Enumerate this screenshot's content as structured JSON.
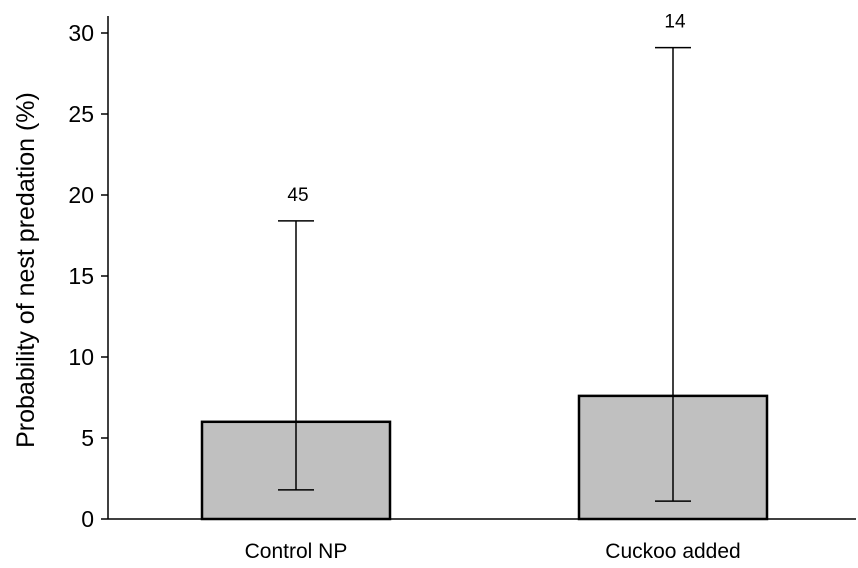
{
  "chart_data": {
    "type": "bar",
    "title": "",
    "xlabel": "",
    "ylabel": "Probability of nest predation (%)",
    "ylim": [
      0,
      30
    ],
    "yticks": [
      0,
      5,
      10,
      15,
      20,
      25,
      30
    ],
    "grid": false,
    "categories": [
      "Control NP",
      "Cuckoo added"
    ],
    "values": [
      6.0,
      7.6
    ],
    "ci_lower": [
      1.8,
      1.1
    ],
    "ci_upper": [
      18.4,
      29.1
    ],
    "sample_sizes": [
      "45",
      "14"
    ],
    "bar_color": "#c0c0c0"
  }
}
